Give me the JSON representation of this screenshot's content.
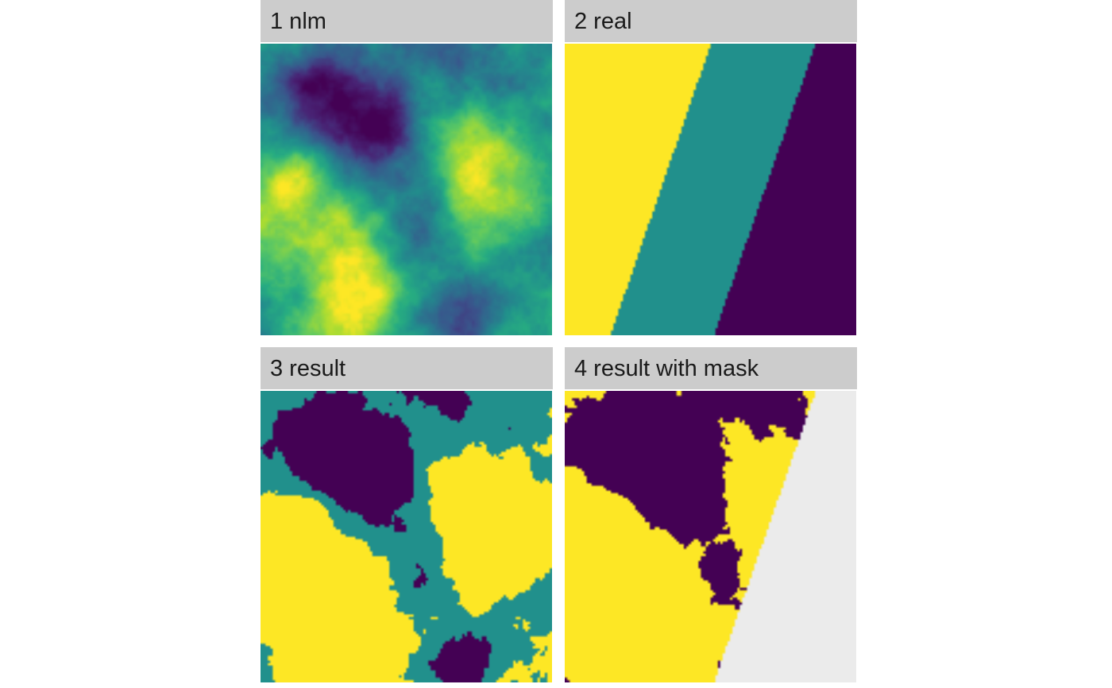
{
  "chart_data": {
    "type": "heatmap",
    "layout": "2x2 facets",
    "palette": {
      "low": "#440154",
      "mid": "#21908C",
      "high": "#FDE725",
      "na": "#EBEBEB",
      "strip_background": "#CCCCCC",
      "strip_text": "#1A1A1A"
    },
    "panels": [
      {
        "label": "1 nlm",
        "kind": "continuous",
        "description_values": {
          "scale": "continuous viridis 0-1"
        }
      },
      {
        "label": "2 real",
        "kind": "categorical",
        "classes": 3,
        "bands": [
          {
            "color": "high",
            "top_boundary": [
              0.0,
              0.5
            ],
            "bottom_boundary": [
              0.0,
              0.155
            ]
          },
          {
            "color": "mid",
            "top_boundary": [
              0.5,
              0.86
            ],
            "bottom_boundary": [
              0.155,
              0.51
            ]
          },
          {
            "color": "low",
            "top_boundary": [
              0.86,
              1.0
            ],
            "bottom_boundary": [
              0.51,
              1.0
            ]
          }
        ]
      },
      {
        "label": "3 result",
        "kind": "categorical",
        "classes": 3
      },
      {
        "label": "4 result with mask",
        "kind": "categorical",
        "classes": 2,
        "mask_edge": {
          "top": 0.86,
          "bottom": 0.51
        }
      }
    ]
  }
}
